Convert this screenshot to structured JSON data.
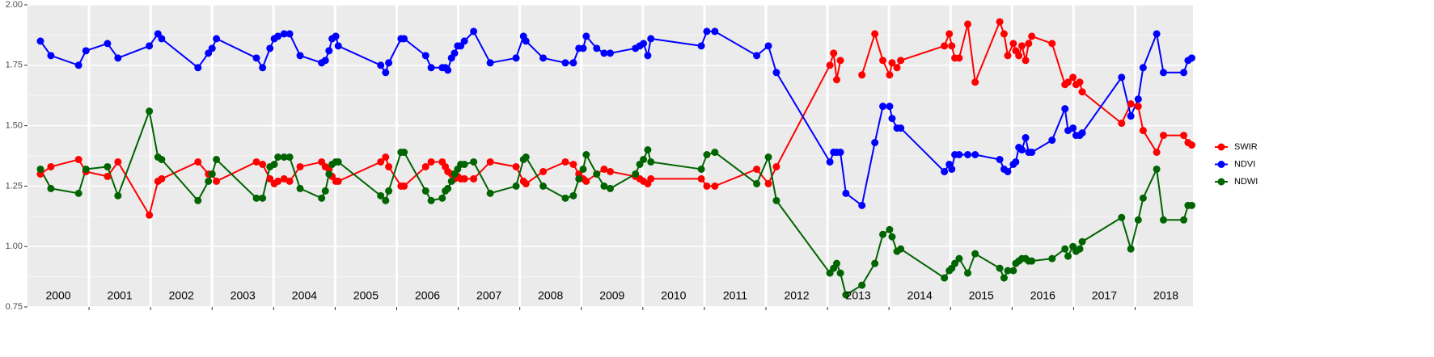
{
  "chart_data": {
    "type": "line",
    "x": [
      2000.21,
      2000.38,
      2000.83,
      2000.95,
      2001.3,
      2001.47,
      2001.98,
      2002.12,
      2002.18,
      2002.77,
      2002.94,
      2003.0,
      2003.07,
      2003.72,
      2003.82,
      2003.94,
      2004.01,
      2004.07,
      2004.17,
      2004.26,
      2004.43,
      2004.78,
      2004.84,
      2004.9,
      2004.95,
      2005.01,
      2005.05,
      2005.74,
      2005.82,
      2005.87,
      2006.07,
      2006.12,
      2006.47,
      2006.56,
      2006.74,
      2006.79,
      2006.83,
      2006.89,
      2006.94,
      2006.99,
      2007.04,
      2007.1,
      2007.25,
      2007.52,
      2007.94,
      2008.06,
      2008.1,
      2008.38,
      2008.74,
      2008.87,
      2008.96,
      2009.03,
      2009.08,
      2009.25,
      2009.37,
      2009.47,
      2009.88,
      2009.95,
      2010.01,
      2010.08,
      2010.13,
      2010.95,
      2011.04,
      2011.17,
      2011.85,
      2012.04,
      2012.17,
      2013.04,
      2013.1,
      2013.15,
      2013.21,
      2013.3,
      2013.56,
      2013.77,
      2013.9,
      2014.01,
      2014.05,
      2014.13,
      2014.19,
      2014.9,
      2014.98,
      2015.02,
      2015.07,
      2015.14,
      2015.28,
      2015.4,
      2015.8,
      2015.87,
      2015.93,
      2016.02,
      2016.06,
      2016.11,
      2016.16,
      2016.22,
      2016.27,
      2016.32,
      2016.65,
      2016.86,
      2016.91,
      2016.99,
      2017.04,
      2017.1,
      2017.14,
      2017.78,
      2017.93,
      2018.05,
      2018.13,
      2018.35,
      2018.46,
      2018.79,
      2018.86,
      2018.92
    ],
    "series": [
      {
        "name": "SWIR",
        "color": "#ff0000",
        "values": [
          1.3,
          1.33,
          1.36,
          1.31,
          1.29,
          1.35,
          1.13,
          1.27,
          1.28,
          1.35,
          1.3,
          1.3,
          1.27,
          1.35,
          1.34,
          1.28,
          1.26,
          1.27,
          1.28,
          1.27,
          1.33,
          1.35,
          1.33,
          1.32,
          1.29,
          1.27,
          1.27,
          1.35,
          1.37,
          1.33,
          1.25,
          1.25,
          1.33,
          1.35,
          1.35,
          1.33,
          1.31,
          1.3,
          1.28,
          1.29,
          1.28,
          1.28,
          1.28,
          1.35,
          1.33,
          1.27,
          1.26,
          1.31,
          1.35,
          1.34,
          1.3,
          1.28,
          1.27,
          1.3,
          1.32,
          1.31,
          1.29,
          1.28,
          1.27,
          1.26,
          1.28,
          1.28,
          1.25,
          1.25,
          1.32,
          1.26,
          1.33,
          1.75,
          1.8,
          1.69,
          1.77,
          null,
          1.71,
          1.88,
          1.77,
          1.71,
          1.76,
          1.74,
          1.77,
          1.83,
          1.88,
          1.83,
          1.78,
          1.78,
          1.92,
          1.68,
          1.93,
          1.88,
          1.79,
          1.84,
          1.81,
          1.79,
          1.83,
          1.77,
          1.84,
          1.87,
          1.84,
          1.67,
          1.68,
          1.7,
          1.67,
          1.68,
          1.64,
          1.51,
          1.59,
          1.58,
          1.48,
          1.39,
          1.46,
          1.46,
          1.43,
          1.42
        ]
      },
      {
        "name": "NDVI",
        "color": "#0000ff",
        "values": [
          1.85,
          1.79,
          1.75,
          1.81,
          1.84,
          1.78,
          1.83,
          1.88,
          1.86,
          1.74,
          1.8,
          1.82,
          1.86,
          1.78,
          1.74,
          1.82,
          1.86,
          1.87,
          1.88,
          1.88,
          1.79,
          1.76,
          1.77,
          1.81,
          1.86,
          1.87,
          1.83,
          1.75,
          1.72,
          1.76,
          1.86,
          1.86,
          1.79,
          1.74,
          1.74,
          1.74,
          1.73,
          1.78,
          1.8,
          1.83,
          1.83,
          1.85,
          1.89,
          1.76,
          1.78,
          1.87,
          1.85,
          1.78,
          1.76,
          1.76,
          1.82,
          1.82,
          1.87,
          1.82,
          1.8,
          1.8,
          1.82,
          1.83,
          1.84,
          1.79,
          1.86,
          1.83,
          1.89,
          1.89,
          1.79,
          1.83,
          1.72,
          1.35,
          1.39,
          1.39,
          1.39,
          1.22,
          1.17,
          1.43,
          1.58,
          1.58,
          1.53,
          1.49,
          1.49,
          1.31,
          1.34,
          1.32,
          1.38,
          1.38,
          1.38,
          1.38,
          1.36,
          1.32,
          1.31,
          1.34,
          1.35,
          1.41,
          1.4,
          1.45,
          1.39,
          1.39,
          1.44,
          1.57,
          1.48,
          1.49,
          1.46,
          1.46,
          1.47,
          1.7,
          1.54,
          1.61,
          1.74,
          1.88,
          1.72,
          1.72,
          1.77,
          1.78
        ]
      },
      {
        "name": "NDWI",
        "color": "#006400",
        "values": [
          1.32,
          1.24,
          1.22,
          1.32,
          1.33,
          1.21,
          1.56,
          1.37,
          1.36,
          1.19,
          1.27,
          1.3,
          1.36,
          1.2,
          1.2,
          1.33,
          1.34,
          1.37,
          1.37,
          1.37,
          1.24,
          1.2,
          1.23,
          1.3,
          1.34,
          1.35,
          1.35,
          1.21,
          1.19,
          1.23,
          1.39,
          1.39,
          1.23,
          1.19,
          1.2,
          1.23,
          1.24,
          1.27,
          1.3,
          1.32,
          1.34,
          1.34,
          1.35,
          1.22,
          1.25,
          1.36,
          1.37,
          1.25,
          1.2,
          1.21,
          1.28,
          1.32,
          1.38,
          1.3,
          1.25,
          1.24,
          1.3,
          1.34,
          1.36,
          1.4,
          1.35,
          1.32,
          1.38,
          1.39,
          1.26,
          1.37,
          1.19,
          0.89,
          0.91,
          0.93,
          0.89,
          0.8,
          0.84,
          0.93,
          1.05,
          1.07,
          1.04,
          0.98,
          0.99,
          0.87,
          0.9,
          0.91,
          0.93,
          0.95,
          0.89,
          0.97,
          0.91,
          0.87,
          0.9,
          0.9,
          0.93,
          0.94,
          0.95,
          0.95,
          0.94,
          0.94,
          0.95,
          0.99,
          0.96,
          1.0,
          0.98,
          0.99,
          1.02,
          1.12,
          0.99,
          1.11,
          1.2,
          1.32,
          1.11,
          1.11,
          1.17,
          1.17
        ]
      }
    ],
    "xlim": [
      2000,
      2018.94
    ],
    "xticks": [
      2001,
      2002,
      2003,
      2004,
      2005,
      2006,
      2007,
      2008,
      2009,
      2010,
      2011,
      2012,
      2013,
      2014,
      2015,
      2016,
      2017,
      2018
    ],
    "ylim": [
      0.75,
      2.0
    ],
    "yticks": [
      {
        "value": 0.75,
        "label": "0.75"
      },
      {
        "value": 1.0,
        "label": "1.00"
      },
      {
        "value": 1.25,
        "label": "1.25"
      },
      {
        "value": 1.5,
        "label": "1.50"
      },
      {
        "value": 1.75,
        "label": "1.75"
      },
      {
        "value": 2.0,
        "label": "2.00"
      }
    ],
    "annotations": [
      {
        "text": "2000",
        "x": 2000.5
      },
      {
        "text": "2001",
        "x": 2001.5
      },
      {
        "text": "2002",
        "x": 2002.5
      },
      {
        "text": "2003",
        "x": 2003.5
      },
      {
        "text": "2004",
        "x": 2004.5
      },
      {
        "text": "2005",
        "x": 2005.5
      },
      {
        "text": "2006",
        "x": 2006.5
      },
      {
        "text": "2007",
        "x": 2007.5
      },
      {
        "text": "2008",
        "x": 2008.5
      },
      {
        "text": "2009",
        "x": 2009.5
      },
      {
        "text": "2010",
        "x": 2010.5
      },
      {
        "text": "2011",
        "x": 2011.5
      },
      {
        "text": "2012",
        "x": 2012.5
      },
      {
        "text": "2013",
        "x": 2013.5
      },
      {
        "text": "2014",
        "x": 2014.5
      },
      {
        "text": "2015",
        "x": 2015.5
      },
      {
        "text": "2016",
        "x": 2016.5
      },
      {
        "text": "2017",
        "x": 2017.5
      },
      {
        "text": "2018",
        "x": 2018.5
      }
    ],
    "grid": true,
    "legend": "right"
  }
}
